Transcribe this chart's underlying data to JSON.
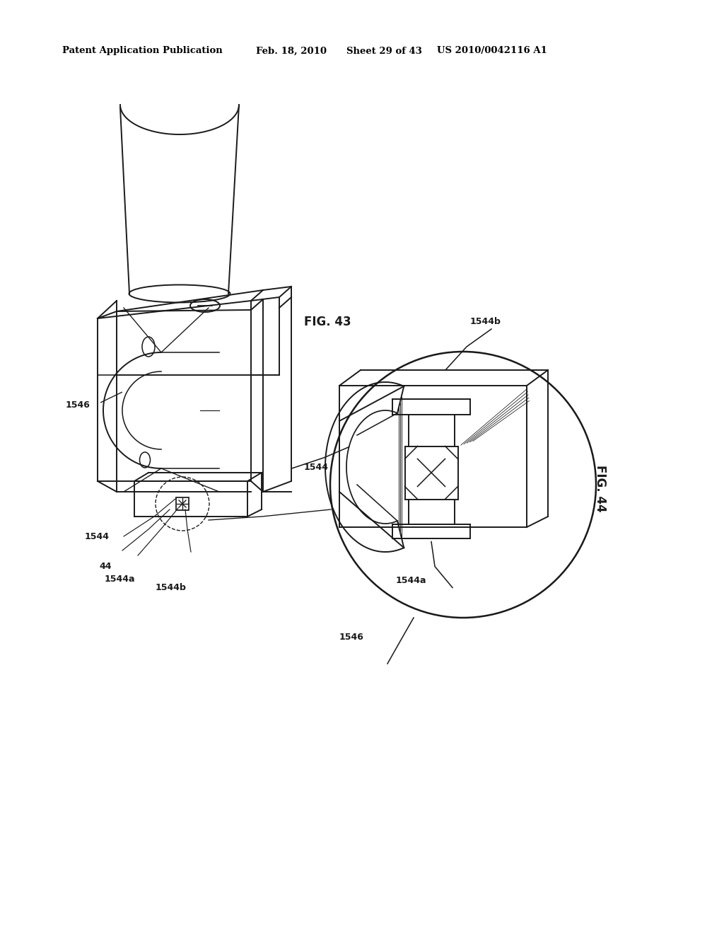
{
  "bg_color": "#ffffff",
  "header_text": "Patent Application Publication",
  "header_date": "Feb. 18, 2010",
  "header_sheet": "Sheet 29 of 43",
  "header_patent": "US 2010/0042116 A1",
  "fig43_label": "FIG. 43",
  "fig44_label": "FIG. 44",
  "line_color": "#1a1a1a",
  "lw": 1.4,
  "labels": {
    "1546_left": "1546",
    "1544_left": "1544",
    "1544a_left": "1544a",
    "1544b_left": "1544b",
    "44_left": "44",
    "1546_right": "1546",
    "1544_right": "1544",
    "1544a_right": "1544a",
    "1544b_right": "1544b"
  }
}
